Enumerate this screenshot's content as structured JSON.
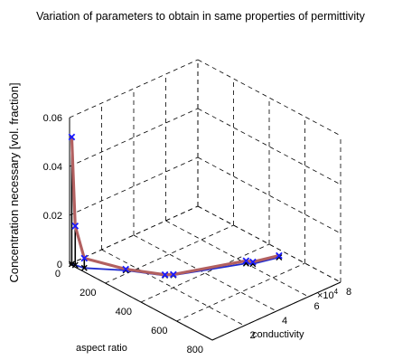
{
  "chart_data": {
    "type": "line",
    "projection": "3d",
    "title": "Variation of parameters to obtain in same properties of permittivity",
    "xlabel": "aspect ratio",
    "ylabel": "conductivity",
    "zlabel": "Concentration necessary [vol. fraction]",
    "y_multiplier_label": "×10",
    "y_multiplier_exp": "4",
    "xlim": [
      0,
      800
    ],
    "ylim": [
      0,
      80000
    ],
    "zlim": [
      0,
      0.06
    ],
    "xticks": [
      "0",
      "200",
      "400",
      "600",
      "800"
    ],
    "yticks": [
      "2",
      "4",
      "6",
      "8"
    ],
    "zticks": [
      "0",
      "0.02",
      "0.04",
      "0.06"
    ],
    "grid": true,
    "series": [
      {
        "role": "3d-curve",
        "x": [
          5,
          20,
          60,
          180,
          310,
          330,
          450,
          470,
          500
        ],
        "y": [
          800,
          1300,
          2500,
          15000,
          25000,
          28000,
          60000,
          62000,
          75000
        ],
        "z": [
          0.052,
          0.016,
          0.004,
          0.0005,
          0.0003,
          0.0003,
          0.0011,
          0.0008,
          0.0007
        ],
        "color": "#b26060",
        "marker": "x",
        "marker_color": "#1a1aff"
      },
      {
        "role": "floor-projection",
        "color": "#1f2bd0",
        "marker": "x",
        "marker_color": "#000000"
      }
    ],
    "stems": {
      "color": "#000000",
      "count": 3
    }
  }
}
